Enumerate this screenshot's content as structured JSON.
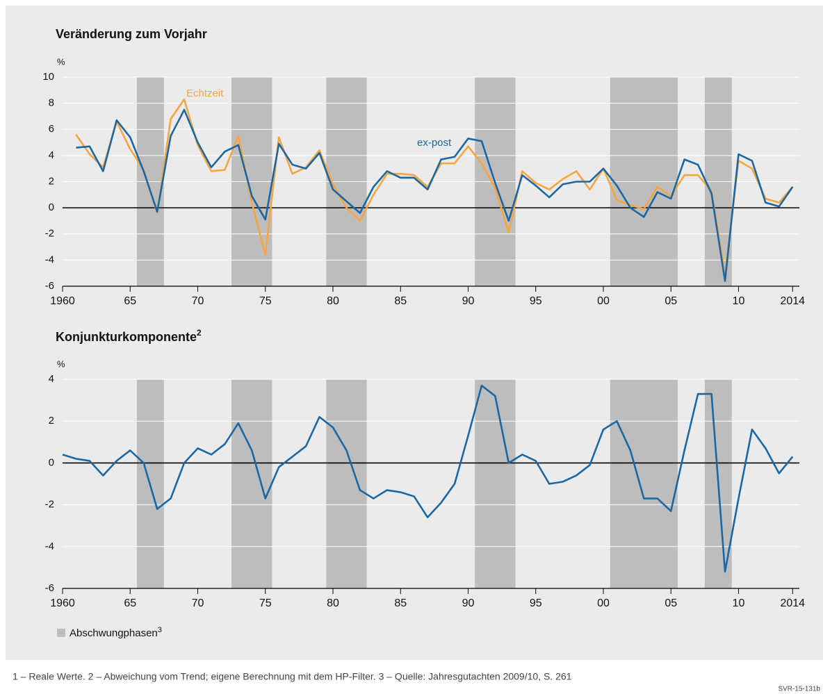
{
  "chart_data": [
    {
      "type": "line",
      "title": "Veränderung zum Vorjahr",
      "y_label": "%",
      "x": [
        1960,
        1961,
        1962,
        1963,
        1964,
        1965,
        1966,
        1967,
        1968,
        1969,
        1970,
        1971,
        1972,
        1973,
        1974,
        1975,
        1976,
        1977,
        1978,
        1979,
        1980,
        1981,
        1982,
        1983,
        1984,
        1985,
        1986,
        1987,
        1988,
        1989,
        1990,
        1991,
        1992,
        1993,
        1994,
        1995,
        1996,
        1997,
        1998,
        1999,
        2000,
        2001,
        2002,
        2003,
        2004,
        2005,
        2006,
        2007,
        2008,
        2009,
        2010,
        2011,
        2012,
        2013,
        2014
      ],
      "series": [
        {
          "name": "Echtzeit",
          "color": "#f7a541",
          "values": [
            null,
            5.6,
            4.1,
            3.1,
            6.6,
            4.5,
            2.9,
            -0.4,
            6.8,
            8.3,
            4.8,
            2.8,
            2.9,
            5.5,
            0.4,
            -3.6,
            5.4,
            2.6,
            3.1,
            4.4,
            1.8,
            0.0,
            -1.0,
            1.0,
            2.6,
            2.6,
            2.5,
            1.6,
            3.4,
            3.4,
            4.7,
            3.4,
            1.5,
            -1.9,
            2.8,
            1.9,
            1.4,
            2.2,
            2.8,
            1.4,
            3.0,
            0.6,
            0.2,
            -0.1,
            1.6,
            0.9,
            2.5,
            2.5,
            1.3,
            -5.1,
            3.6,
            3.0,
            0.7,
            0.4,
            1.6
          ]
        },
        {
          "name": "ex-post",
          "color": "#1a67a3",
          "values": [
            null,
            4.6,
            4.7,
            2.8,
            6.7,
            5.4,
            2.8,
            -0.3,
            5.5,
            7.5,
            5.0,
            3.1,
            4.3,
            4.8,
            0.9,
            -0.9,
            4.9,
            3.3,
            3.0,
            4.2,
            1.4,
            0.5,
            -0.4,
            1.6,
            2.8,
            2.3,
            2.3,
            1.4,
            3.7,
            3.9,
            5.3,
            5.1,
            1.9,
            -1.0,
            2.5,
            1.7,
            0.8,
            1.8,
            2.0,
            2.0,
            3.0,
            1.7,
            0.0,
            -0.7,
            1.2,
            0.7,
            3.7,
            3.3,
            1.1,
            -5.6,
            4.1,
            3.6,
            0.4,
            0.1,
            1.6
          ]
        }
      ],
      "xlim": [
        1960,
        2014.5
      ],
      "ylim": [
        -6,
        10
      ],
      "yticks": [
        -6,
        -4,
        -2,
        0,
        2,
        4,
        6,
        8,
        10
      ],
      "xticks": [
        1960,
        {
          "value": 1965,
          "label": "65"
        },
        {
          "value": 1970,
          "label": "70"
        },
        {
          "value": 1975,
          "label": "75"
        },
        {
          "value": 1980,
          "label": "80"
        },
        {
          "value": 1985,
          "label": "85"
        },
        {
          "value": 1990,
          "label": "90"
        },
        {
          "value": 1995,
          "label": "95"
        },
        {
          "value": 2000,
          "label": "00"
        },
        {
          "value": 2005,
          "label": "05"
        },
        {
          "value": 2010,
          "label": "10"
        },
        2014
      ],
      "shaded": [
        [
          1965.5,
          1967.5
        ],
        [
          1972.5,
          1975.5
        ],
        [
          1979.5,
          1982.5
        ],
        [
          1990.5,
          1993.5
        ],
        [
          2000.5,
          2005.5
        ],
        [
          2007.5,
          2009.5
        ]
      ],
      "grid": true
    },
    {
      "type": "line",
      "title": "Konjunkturkomponente",
      "title_sup": "2",
      "y_label": "%",
      "x": [
        1960,
        1961,
        1962,
        1963,
        1964,
        1965,
        1966,
        1967,
        1968,
        1969,
        1970,
        1971,
        1972,
        1973,
        1974,
        1975,
        1976,
        1977,
        1978,
        1979,
        1980,
        1981,
        1982,
        1983,
        1984,
        1985,
        1986,
        1987,
        1988,
        1989,
        1990,
        1991,
        1992,
        1993,
        1994,
        1995,
        1996,
        1997,
        1998,
        1999,
        2000,
        2001,
        2002,
        2003,
        2004,
        2005,
        2006,
        2007,
        2008,
        2009,
        2010,
        2011,
        2012,
        2013,
        2014
      ],
      "series": [
        {
          "color": "#1a67a3",
          "values": [
            0.4,
            0.2,
            0.1,
            -0.6,
            0.1,
            0.6,
            0.0,
            -2.2,
            -1.7,
            0.0,
            0.7,
            0.4,
            0.9,
            1.9,
            0.6,
            -1.7,
            -0.2,
            0.3,
            0.8,
            2.2,
            1.7,
            0.6,
            -1.3,
            -1.7,
            -1.3,
            -1.4,
            -1.6,
            -2.6,
            -1.9,
            -1.0,
            1.3,
            3.7,
            3.2,
            0.0,
            0.4,
            0.1,
            -1.0,
            -0.9,
            -0.6,
            -0.1,
            1.6,
            2.0,
            0.6,
            -1.7,
            -1.7,
            -2.3,
            0.6,
            3.3,
            3.3,
            -5.2,
            -1.7,
            1.6,
            0.7,
            -0.5,
            0.3
          ]
        }
      ],
      "xlim": [
        1960,
        2014.5
      ],
      "ylim": [
        -6,
        4
      ],
      "yticks": [
        -6,
        -4,
        -2,
        0,
        2,
        4
      ],
      "xticks": [
        1960,
        {
          "value": 1965,
          "label": "65"
        },
        {
          "value": 1970,
          "label": "70"
        },
        {
          "value": 1975,
          "label": "75"
        },
        {
          "value": 1980,
          "label": "80"
        },
        {
          "value": 1985,
          "label": "85"
        },
        {
          "value": 1990,
          "label": "90"
        },
        {
          "value": 1995,
          "label": "95"
        },
        {
          "value": 2000,
          "label": "00"
        },
        {
          "value": 2005,
          "label": "05"
        },
        {
          "value": 2010,
          "label": "10"
        },
        2014
      ],
      "shaded": [
        [
          1965.5,
          1967.5
        ],
        [
          1972.5,
          1975.5
        ],
        [
          1979.5,
          1982.5
        ],
        [
          1990.5,
          1993.5
        ],
        [
          2000.5,
          2005.5
        ],
        [
          2007.5,
          2009.5
        ]
      ],
      "grid": true
    }
  ],
  "legend": {
    "label": "Abschwungphasen",
    "sup": "3",
    "color": "#bdbdbd"
  },
  "footnote": "1 – Reale Werte.  2 – Abweichung vom Trend; eigene Berechnung mit dem HP-Filter.  3 – Quelle: Jahresgutachten 2009/10, S. 261",
  "code": "SVR-15-131b"
}
